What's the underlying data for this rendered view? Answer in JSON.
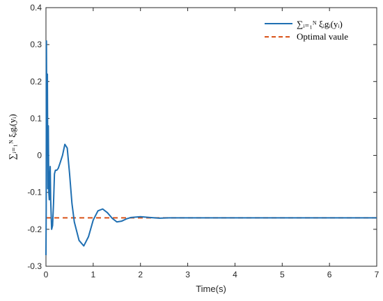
{
  "chart_data": {
    "type": "line",
    "title": "",
    "xlabel": "Time(s)",
    "ylabel": "∑ᵢ₌₁ᴺ ξᵢgᵢ(yᵢ)",
    "xlim": [
      0,
      7
    ],
    "ylim": [
      -0.3,
      0.4
    ],
    "x_ticks": [
      "0",
      "1",
      "2",
      "3",
      "4",
      "5",
      "6",
      "7"
    ],
    "y_ticks": [
      "-0.3",
      "-0.2",
      "-0.1",
      "0",
      "0.1",
      "0.2",
      "0.3",
      "0.4"
    ],
    "grid": false,
    "legend_position": "top-right",
    "series": [
      {
        "name": "∑ᵢ₌₁ᴺ ξᵢgᵢ(yᵢ)",
        "color": "#1f6fb2",
        "style": "solid",
        "x": [
          0,
          0.005,
          0.01,
          0.02,
          0.03,
          0.04,
          0.05,
          0.06,
          0.07,
          0.08,
          0.09,
          0.1,
          0.12,
          0.14,
          0.16,
          0.18,
          0.2,
          0.23,
          0.26,
          0.3,
          0.35,
          0.4,
          0.45,
          0.5,
          0.55,
          0.6,
          0.7,
          0.8,
          0.9,
          1.0,
          1.1,
          1.2,
          1.3,
          1.4,
          1.5,
          1.6,
          1.7,
          1.8,
          2.0,
          2.2,
          2.4,
          2.6,
          3.0,
          4.0,
          5.0,
          6.0,
          7.0
        ],
        "y": [
          -0.27,
          -0.15,
          0.31,
          0.0,
          0.22,
          -0.09,
          0.08,
          -0.1,
          -0.12,
          -0.07,
          -0.03,
          -0.12,
          -0.2,
          -0.19,
          -0.13,
          -0.05,
          -0.04,
          -0.04,
          -0.035,
          -0.02,
          0.0,
          0.03,
          0.02,
          -0.05,
          -0.13,
          -0.18,
          -0.23,
          -0.245,
          -0.22,
          -0.175,
          -0.15,
          -0.145,
          -0.155,
          -0.17,
          -0.18,
          -0.178,
          -0.172,
          -0.168,
          -0.166,
          -0.168,
          -0.17,
          -0.169,
          -0.169,
          -0.169,
          -0.169,
          -0.169,
          -0.169
        ]
      },
      {
        "name": "Optimal vaule",
        "color": "#d95319",
        "style": "dashed",
        "x": [
          0,
          7
        ],
        "y": [
          -0.169,
          -0.169
        ]
      }
    ]
  }
}
